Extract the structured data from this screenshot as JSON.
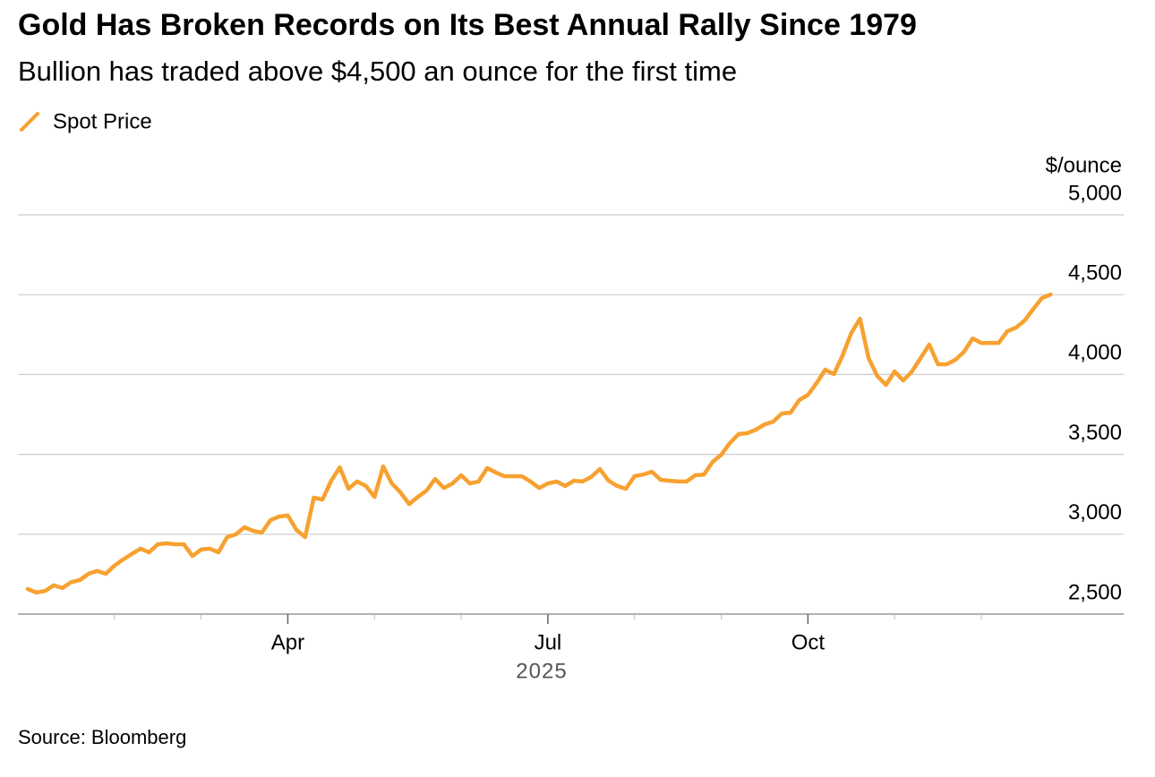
{
  "chart_data": {
    "type": "line",
    "title": "Gold Has Broken Records on Its Best Annual Rally Since 1979",
    "subtitle": "Bullion has traded above $4,500 an ounce for the first time",
    "source": "Source: Bloomberg",
    "ylabel": "$/ounce",
    "xlabel": "2025",
    "categories": [
      null,
      null,
      null,
      null,
      null,
      null,
      null,
      null,
      null,
      null,
      null,
      null,
      null,
      null,
      null,
      null,
      null,
      null,
      null,
      null,
      null,
      null,
      null,
      null,
      null,
      null,
      null,
      null,
      null,
      null,
      "Apr",
      null,
      null,
      null,
      null,
      null,
      null,
      null,
      null,
      null,
      null,
      null,
      null,
      null,
      null,
      null,
      null,
      null,
      null,
      null,
      null,
      null,
      null,
      null,
      null,
      null,
      null,
      null,
      null,
      null,
      "Jul",
      null,
      null,
      null,
      null,
      null,
      null,
      null,
      null,
      null,
      null,
      null,
      null,
      null,
      null,
      null,
      null,
      null,
      null,
      null,
      null,
      null,
      null,
      null,
      null,
      null,
      null,
      null,
      null,
      null,
      "Oct",
      null,
      null,
      null,
      null,
      null,
      null,
      null,
      null,
      null,
      null,
      null,
      null,
      null,
      null,
      null,
      null,
      null,
      null,
      null,
      null,
      null,
      null,
      null,
      null,
      null,
      null,
      null,
      null
    ],
    "series": [
      {
        "name": "Spot Price",
        "color": "#f7a130",
        "values": [
          2657,
          2635,
          2645,
          2680,
          2663,
          2700,
          2713,
          2752,
          2770,
          2752,
          2803,
          2842,
          2876,
          2910,
          2887,
          2937,
          2943,
          2937,
          2937,
          2864,
          2904,
          2910,
          2887,
          2982,
          2999,
          3044,
          3021,
          3010,
          3088,
          3111,
          3117,
          3027,
          2982,
          3229,
          3217,
          3335,
          3419,
          3285,
          3330,
          3302,
          3234,
          3425,
          3318,
          3262,
          3189,
          3234,
          3273,
          3346,
          3290,
          3318,
          3369,
          3318,
          3330,
          3414,
          3386,
          3363,
          3363,
          3363,
          3330,
          3290,
          3318,
          3330,
          3302,
          3335,
          3330,
          3358,
          3408,
          3335,
          3302,
          3285,
          3363,
          3374,
          3391,
          3341,
          3335,
          3330,
          3330,
          3369,
          3374,
          3453,
          3498,
          3571,
          3627,
          3633,
          3655,
          3688,
          3705,
          3756,
          3761,
          3840,
          3873,
          3946,
          4030,
          4002,
          4120,
          4260,
          4350,
          4103,
          3991,
          3935,
          4019,
          3963,
          4019,
          4103,
          4187,
          4064,
          4064,
          4092,
          4142,
          4226,
          4198,
          4198,
          4198,
          4271,
          4294,
          4338,
          4411,
          4479,
          4501
        ]
      }
    ],
    "ylim": [
      2500,
      5000
    ],
    "yticks": [
      {
        "value": 2500,
        "label": "2,500"
      },
      {
        "value": 3000,
        "label": "3,000"
      },
      {
        "value": 3500,
        "label": "3,500"
      },
      {
        "value": 4000,
        "label": "4,000"
      },
      {
        "value": 4500,
        "label": "4,500"
      },
      {
        "value": 5000,
        "label": "5,000"
      }
    ],
    "grid": true
  }
}
